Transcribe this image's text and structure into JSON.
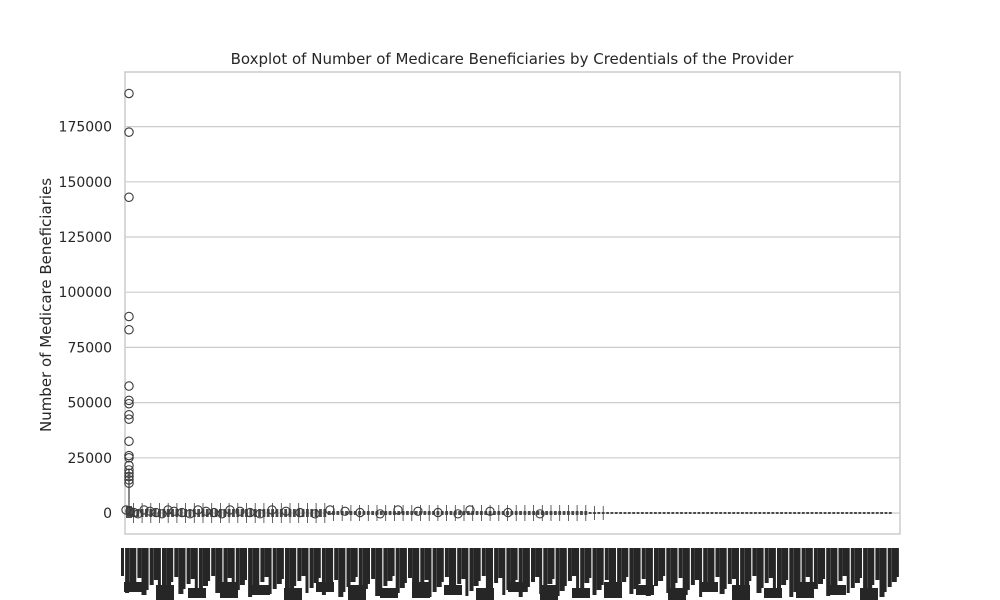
{
  "chart_data": {
    "type": "boxplot",
    "title": "Boxplot of Number of Medicare Beneficiaries by Credentials of the Provider",
    "xlabel": "",
    "ylabel": "Number of Medicare Beneficiaries",
    "ylim": [
      -8000,
      200000
    ],
    "yticks": [
      0,
      25000,
      50000,
      75000,
      100000,
      125000,
      150000,
      175000
    ],
    "ytick_labels": [
      "0",
      "25000",
      "50000",
      "75000",
      "100000",
      "125000",
      "150000",
      "175000"
    ],
    "grid": "horizontal",
    "x_tick_labels_legible": false,
    "notable_outliers": [
      {
        "category_index": 0,
        "value": 190000
      },
      {
        "category_index": 0,
        "value": 172500
      },
      {
        "category_index": 0,
        "value": 143000
      },
      {
        "category_index": 0,
        "value": 89000
      },
      {
        "category_index": 0,
        "value": 83000
      },
      {
        "category_index": 0,
        "value": 57500
      },
      {
        "category_index": 0,
        "value": 51000
      },
      {
        "category_index": 0,
        "value": 49500
      },
      {
        "category_index": 0,
        "value": 44500
      },
      {
        "category_index": 0,
        "value": 42500
      },
      {
        "category_index": 0,
        "value": 32500
      },
      {
        "category_index": 0,
        "value": 26000
      },
      {
        "category_index": 0,
        "value": 25000
      },
      {
        "category_index": 0,
        "value": 21500
      },
      {
        "category_index": 0,
        "value": 19500
      },
      {
        "category_index": 0,
        "value": 18000
      },
      {
        "category_index": 0,
        "value": 16500
      },
      {
        "category_index": 0,
        "value": 15000
      },
      {
        "category_index": 0,
        "value": 13500
      }
    ],
    "low_outlier_value": 500
  },
  "colors": {
    "grid": "#cccccc",
    "frame": "#cccccc",
    "marker": "#3b3b3b",
    "text": "#262626"
  }
}
